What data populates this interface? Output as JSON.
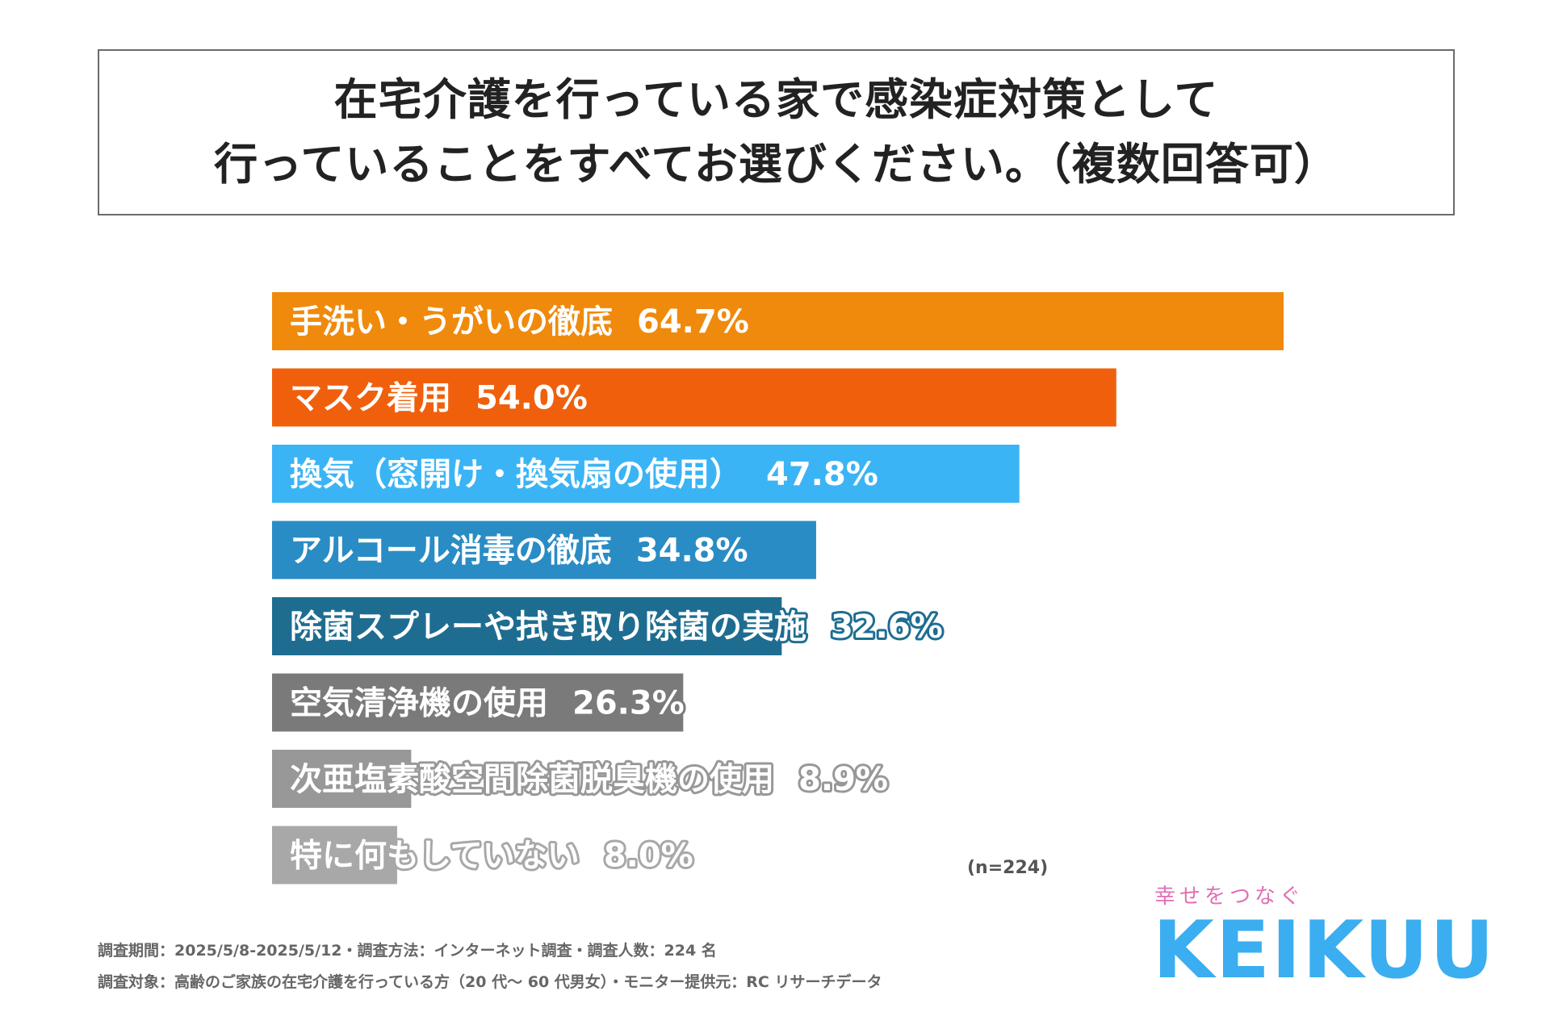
{
  "title": {
    "line1": "在宅介護を行っている家で感染症対策として",
    "line2": "行っていることをすべてお選びください。（複数回答可）"
  },
  "chart_data": {
    "type": "bar",
    "orientation": "horizontal",
    "categories": [
      "手洗い・うがいの徹底",
      "マスク着用",
      "換気（窓開け・換気扇の使用）",
      "アルコール消毒の徹底",
      "除菌スプレーや拭き取り除菌の実施",
      "空気清浄機の使用",
      "次亜塩素酸空間除菌脱臭機の使用",
      "特に何もしていない"
    ],
    "values": [
      64.7,
      54.0,
      47.8,
      34.8,
      32.6,
      26.3,
      8.9,
      8.0
    ],
    "value_labels": [
      "64.7%",
      "54.0%",
      "47.8%",
      "34.8%",
      "32.6%",
      "26.3%",
      "8.9%",
      "8.0%"
    ],
    "bar_colors": [
      "#f08a0c",
      "#f0600c",
      "#3bb4f5",
      "#2a8cc4",
      "#1e6d91",
      "#7a7a7a",
      "#989898",
      "#a8a8a8"
    ],
    "xlim": [
      0,
      100
    ],
    "grid": false,
    "legend": "none"
  },
  "sample_note": "(n=224)",
  "footer": {
    "line1": "調査期間：2025/5/8-2025/5/12・調査方法：インターネット調査・調査人数：224 名",
    "line2": "調査対象：高齢のご家族の在宅介護を行っている方（20 代〜 60 代男女）・モニター提供元：RC リサーチデータ"
  },
  "logo": {
    "tagline": "幸せをつなぐ",
    "wordmark": "KEIKUU",
    "tagline_color": "#e070b4",
    "wordmark_color": "#3aaef0"
  }
}
